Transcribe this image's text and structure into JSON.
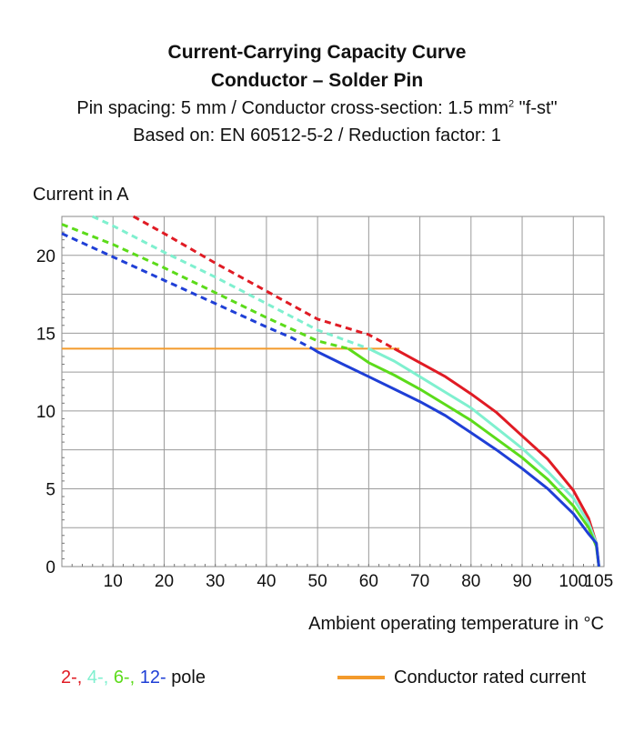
{
  "title_line1": "Current-Carrying Capacity Curve",
  "title_line2": "Conductor – Solder Pin",
  "subtitle_line1_pre": "Pin spacing: 5 mm / Conductor cross-section: 1.5 mm",
  "subtitle_line1_sup": "2",
  "subtitle_line1_post": " \"f-st\"",
  "subtitle_line2": "Based on: EN 60512-5-2 / Reduction factor: 1",
  "legend": {
    "pole_items": [
      {
        "label": "2-,",
        "color": "#e01b24"
      },
      {
        "label": "4-,",
        "color": "#7ff0cf"
      },
      {
        "label": "6-,",
        "color": "#5cdb1a"
      },
      {
        "label": "12-",
        "color": "#1f3fd6"
      }
    ],
    "pole_suffix": "pole",
    "rated_label": "Conductor rated current",
    "rated_color": "#f39a2b"
  },
  "chart_data": {
    "type": "line",
    "title": "Current-Carrying Capacity Curve",
    "ylabel": "Current in A",
    "xlabel": "Ambient operating temperature in °C",
    "xlim": [
      0,
      106
    ],
    "ylim": [
      0,
      22.5
    ],
    "xticks": [
      10,
      20,
      30,
      40,
      50,
      60,
      70,
      80,
      90,
      100,
      105
    ],
    "yticks": [
      0,
      5,
      10,
      15,
      20
    ],
    "grid": true,
    "rated_current": {
      "name": "Conductor rated current",
      "value": 14,
      "x_range": [
        0,
        66
      ],
      "color": "#f39a2b"
    },
    "series": [
      {
        "name": "2-pole",
        "color": "#e01b24",
        "dashed": [
          [
            14,
            22.5
          ],
          [
            20,
            21.4
          ],
          [
            30,
            19.5
          ],
          [
            40,
            17.7
          ],
          [
            50,
            15.9
          ],
          [
            60,
            14.9
          ],
          [
            65,
            14.0
          ]
        ],
        "solid": [
          [
            65,
            14.0
          ],
          [
            70,
            13.1
          ],
          [
            75,
            12.2
          ],
          [
            80,
            11.1
          ],
          [
            85,
            9.9
          ],
          [
            90,
            8.4
          ],
          [
            95,
            6.9
          ],
          [
            100,
            4.9
          ],
          [
            103,
            3.1
          ],
          [
            104.5,
            1.5
          ],
          [
            105,
            0
          ]
        ]
      },
      {
        "name": "4-pole",
        "color": "#7ff0cf",
        "dashed": [
          [
            6,
            22.5
          ],
          [
            10,
            21.9
          ],
          [
            20,
            20.2
          ],
          [
            30,
            18.6
          ],
          [
            40,
            16.9
          ],
          [
            50,
            15.2
          ],
          [
            60,
            14.0
          ]
        ],
        "solid": [
          [
            60,
            14.0
          ],
          [
            65,
            13.2
          ],
          [
            70,
            12.2
          ],
          [
            75,
            11.2
          ],
          [
            80,
            10.2
          ],
          [
            85,
            8.9
          ],
          [
            90,
            7.6
          ],
          [
            95,
            6.1
          ],
          [
            100,
            4.4
          ],
          [
            103,
            2.8
          ],
          [
            104.5,
            1.5
          ],
          [
            105,
            0
          ]
        ]
      },
      {
        "name": "6-pole",
        "color": "#5cdb1a",
        "dashed": [
          [
            0,
            22.0
          ],
          [
            10,
            20.7
          ],
          [
            20,
            19.2
          ],
          [
            30,
            17.6
          ],
          [
            40,
            16.0
          ],
          [
            50,
            14.5
          ],
          [
            56,
            14.0
          ]
        ],
        "solid": [
          [
            56,
            14.0
          ],
          [
            60,
            13.1
          ],
          [
            65,
            12.3
          ],
          [
            70,
            11.4
          ],
          [
            75,
            10.4
          ],
          [
            80,
            9.4
          ],
          [
            85,
            8.2
          ],
          [
            90,
            7.0
          ],
          [
            95,
            5.6
          ],
          [
            100,
            3.9
          ],
          [
            103,
            2.5
          ],
          [
            104.5,
            1.3
          ],
          [
            105,
            0
          ]
        ]
      },
      {
        "name": "12-pole",
        "color": "#1f3fd6",
        "dashed": [
          [
            0,
            21.4
          ],
          [
            10,
            19.9
          ],
          [
            20,
            18.4
          ],
          [
            30,
            16.9
          ],
          [
            40,
            15.4
          ],
          [
            45,
            14.7
          ],
          [
            49,
            14.0
          ]
        ],
        "solid": [
          [
            49,
            14.0
          ],
          [
            50,
            13.8
          ],
          [
            55,
            13.0
          ],
          [
            60,
            12.2
          ],
          [
            65,
            11.4
          ],
          [
            70,
            10.6
          ],
          [
            75,
            9.7
          ],
          [
            80,
            8.6
          ],
          [
            85,
            7.5
          ],
          [
            90,
            6.3
          ],
          [
            95,
            5.0
          ],
          [
            100,
            3.4
          ],
          [
            103,
            2.1
          ],
          [
            104.5,
            1.5
          ],
          [
            105,
            0
          ]
        ]
      }
    ]
  }
}
